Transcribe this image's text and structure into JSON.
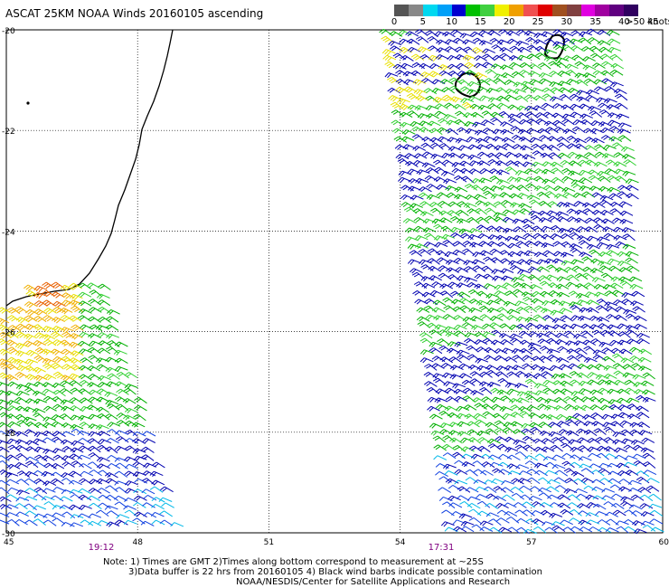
{
  "title": "ASCAT 25KM NOAA Winds 20160105 ascending",
  "scale": {
    "colors": [
      "#555555",
      "#888888",
      "#00d8f0",
      "#00a0f8",
      "#0000d0",
      "#00c000",
      "#40d040",
      "#f0f000",
      "#f0a000",
      "#f05050",
      "#e00000",
      "#a05020",
      "#804040",
      "#e000e0",
      "#a000a0",
      "#600080",
      "#300060"
    ],
    "labels": [
      "0",
      "5",
      "10",
      "15",
      "20",
      "25",
      "30",
      "35",
      "40",
      "45"
    ],
    "overflow_label": ">50 knots"
  },
  "axes": {
    "lon_labels": [
      "45",
      "48",
      "51",
      "54",
      "57",
      "60"
    ],
    "lat_labels": [
      "-20",
      "-22",
      "-24",
      "-26",
      "-28",
      "-30"
    ]
  },
  "times": {
    "left_pass": "19:12",
    "right_pass": "17:31"
  },
  "notes": {
    "line1": "Note: 1) Times are GMT 2)Times along bottom correspond to measurement at ~25S",
    "line2": "3)Data buffer is 22 hrs from 20160105 4) Black wind barbs indicate possible contamination",
    "line3": "NOAA/NESDIS/Center for Satellite Applications and Research"
  },
  "map_data": {
    "map_bounds": {
      "lon": [
        45,
        60
      ],
      "lat": [
        -30,
        -20
      ]
    },
    "swaths": [
      {
        "name": "left",
        "time": "19:12",
        "lon_range": [
          45,
          48.9
        ],
        "lat_range": [
          -30,
          -25
        ]
      },
      {
        "name": "right",
        "time": "17:31",
        "lon_range": [
          53.8,
          60
        ],
        "lat_range": [
          -30,
          -20
        ]
      }
    ],
    "dominant_wind_knots": {
      "south": [
        10,
        20
      ],
      "central": [
        15,
        25
      ],
      "left_north": [
        20,
        30
      ]
    }
  }
}
